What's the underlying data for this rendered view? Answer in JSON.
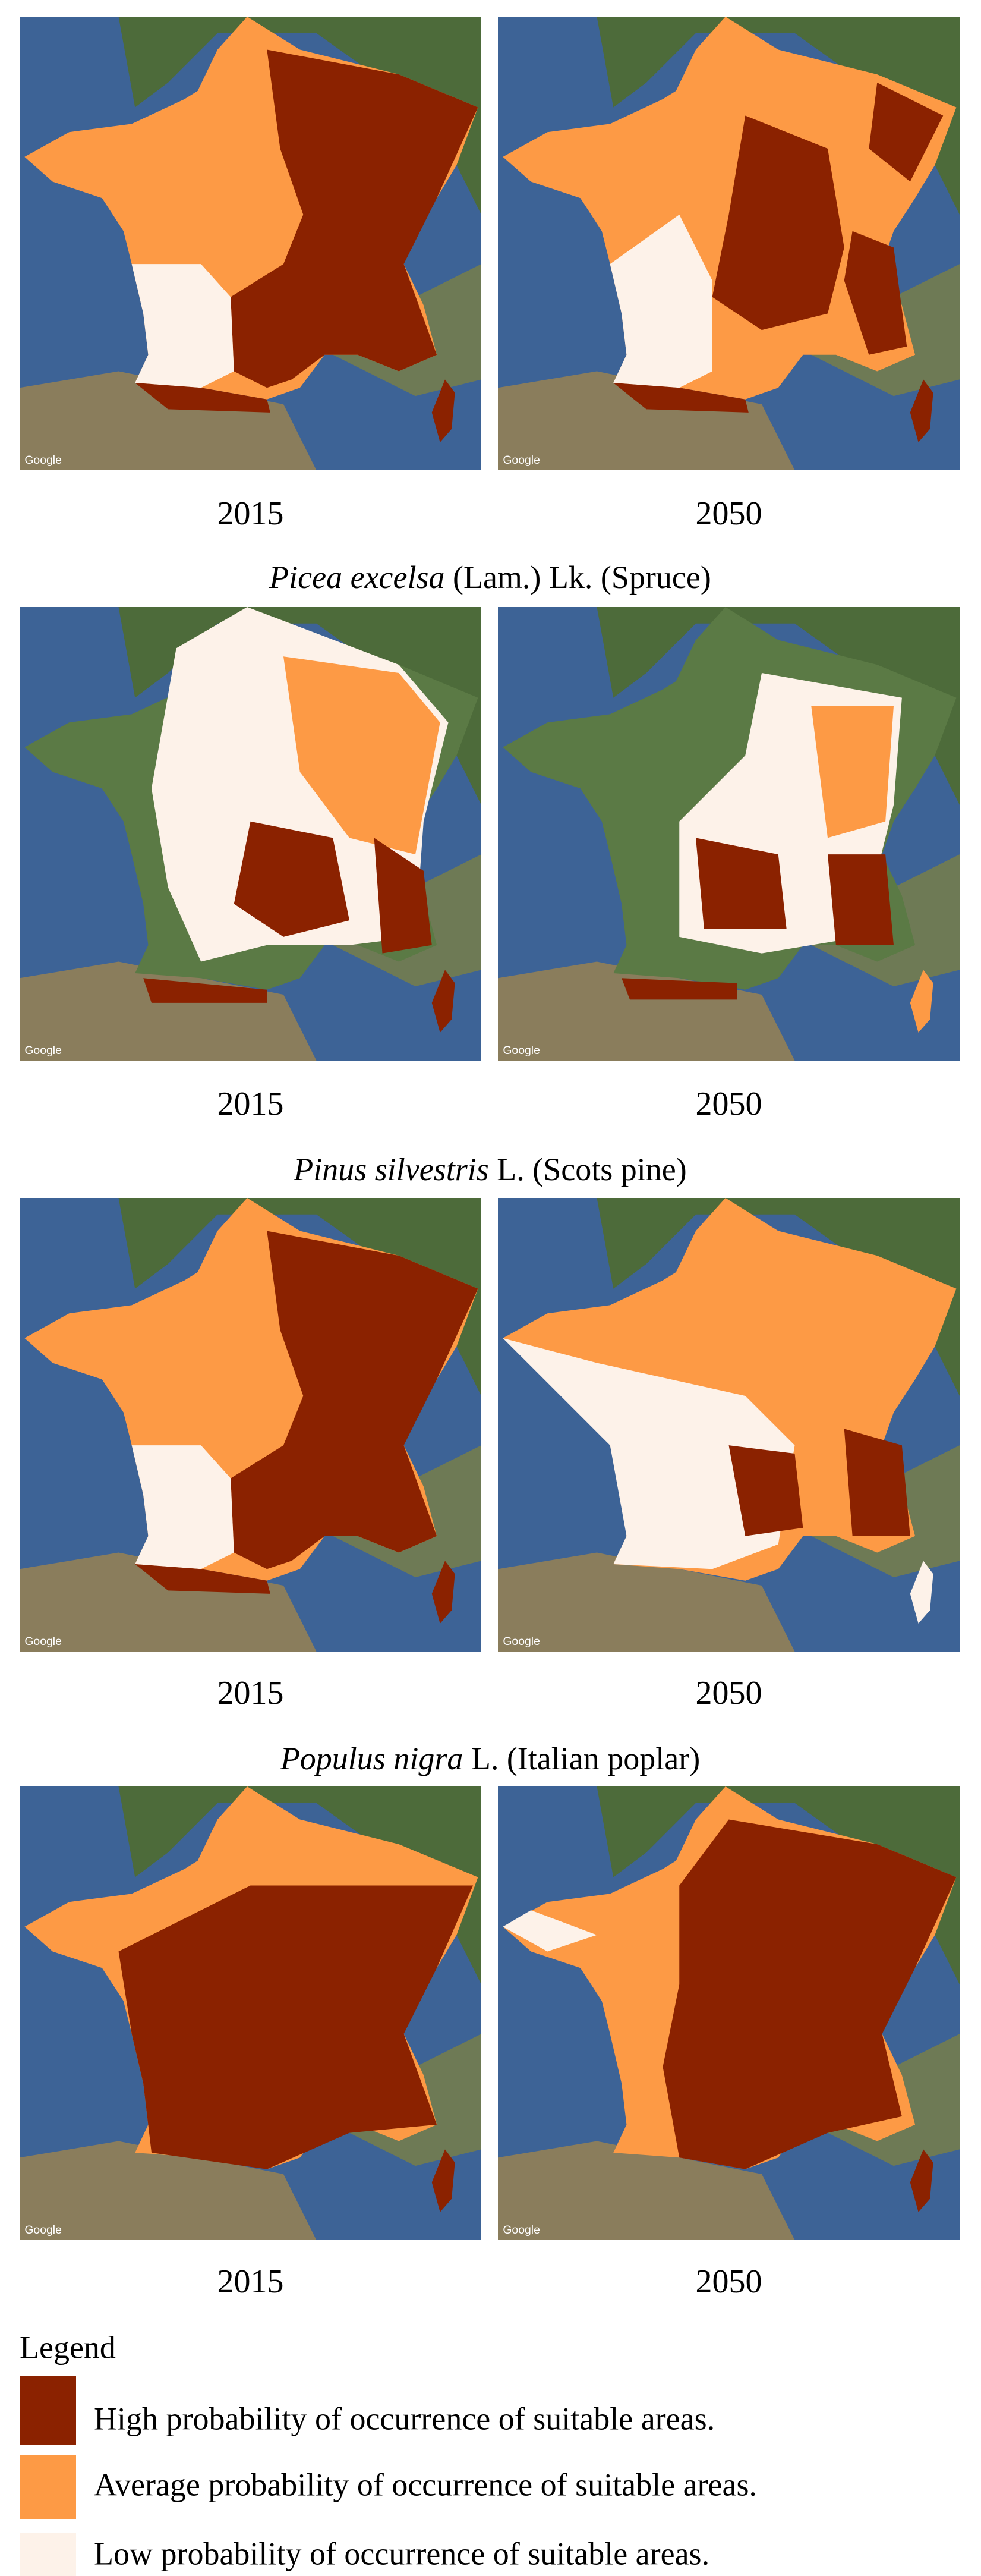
{
  "panels": [
    {
      "maps": [
        {
          "year": "2015"
        },
        {
          "year": "2050"
        }
      ]
    },
    {
      "title": {
        "species": "Picea excelsa",
        "authority": " (Lam.) Lk. (Spruce)"
      },
      "maps": [
        {
          "year": "2015"
        },
        {
          "year": "2050"
        }
      ]
    },
    {
      "title": {
        "species": "Pinus silvestris",
        "authority": " L. (Scots pine)"
      },
      "maps": [
        {
          "year": "2015"
        },
        {
          "year": "2050"
        }
      ]
    },
    {
      "title": {
        "species": "Populus nigra",
        "authority": " L. (Italian poplar)"
      },
      "maps": [
        {
          "year": "2015"
        },
        {
          "year": "2050"
        }
      ]
    }
  ],
  "map_attribution": "Google",
  "legend": {
    "title": "Legend",
    "items": [
      "High probability of occurrence of suitable areas.",
      "Average probability of occurrence of suitable areas.",
      "Low probability of occurrence of suitable areas."
    ]
  }
}
